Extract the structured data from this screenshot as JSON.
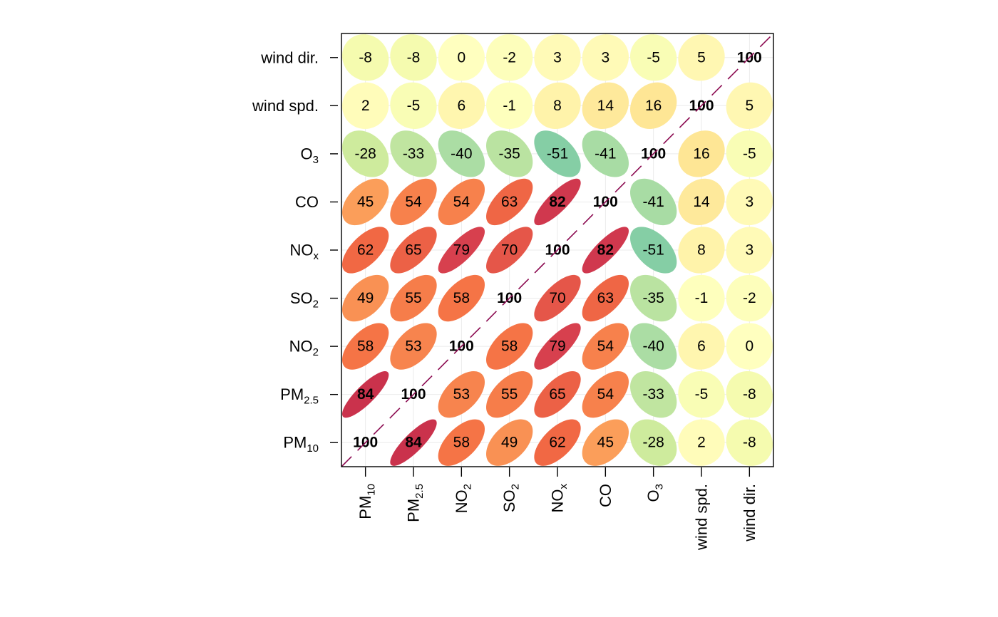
{
  "chart_data": {
    "type": "heatmap",
    "subtype": "correlation-ellipse-matrix",
    "variables": [
      {
        "key": "pm10",
        "base": "PM",
        "sub": "10"
      },
      {
        "key": "pm25",
        "base": "PM",
        "sub": "2.5"
      },
      {
        "key": "no2",
        "base": "NO",
        "sub": "2"
      },
      {
        "key": "so2",
        "base": "SO",
        "sub": "2"
      },
      {
        "key": "nox",
        "base": "NO",
        "sub": "x"
      },
      {
        "key": "co",
        "base": "CO",
        "sub": ""
      },
      {
        "key": "o3",
        "base": "O",
        "sub": "3"
      },
      {
        "key": "wspd",
        "base": "wind spd.",
        "sub": ""
      },
      {
        "key": "wdir",
        "base": "wind dir.",
        "sub": ""
      }
    ],
    "matrix": [
      [
        100,
        84,
        58,
        49,
        62,
        45,
        -28,
        2,
        -8
      ],
      [
        84,
        100,
        53,
        55,
        65,
        54,
        -33,
        -5,
        -8
      ],
      [
        58,
        53,
        100,
        58,
        79,
        54,
        -40,
        6,
        0
      ],
      [
        49,
        55,
        58,
        100,
        70,
        63,
        -35,
        -1,
        -2
      ],
      [
        62,
        65,
        79,
        70,
        100,
        82,
        -51,
        8,
        3
      ],
      [
        45,
        54,
        54,
        63,
        82,
        100,
        -41,
        14,
        3
      ],
      [
        -28,
        -33,
        -40,
        -35,
        -51,
        -41,
        100,
        16,
        -5
      ],
      [
        2,
        -5,
        6,
        -1,
        8,
        14,
        16,
        100,
        5
      ],
      [
        -8,
        -8,
        0,
        -2,
        3,
        3,
        -5,
        5,
        100
      ]
    ],
    "bold_values": [
      100,
      84,
      82
    ],
    "diagonal_line_color": "#8b0a50",
    "grid": true
  }
}
